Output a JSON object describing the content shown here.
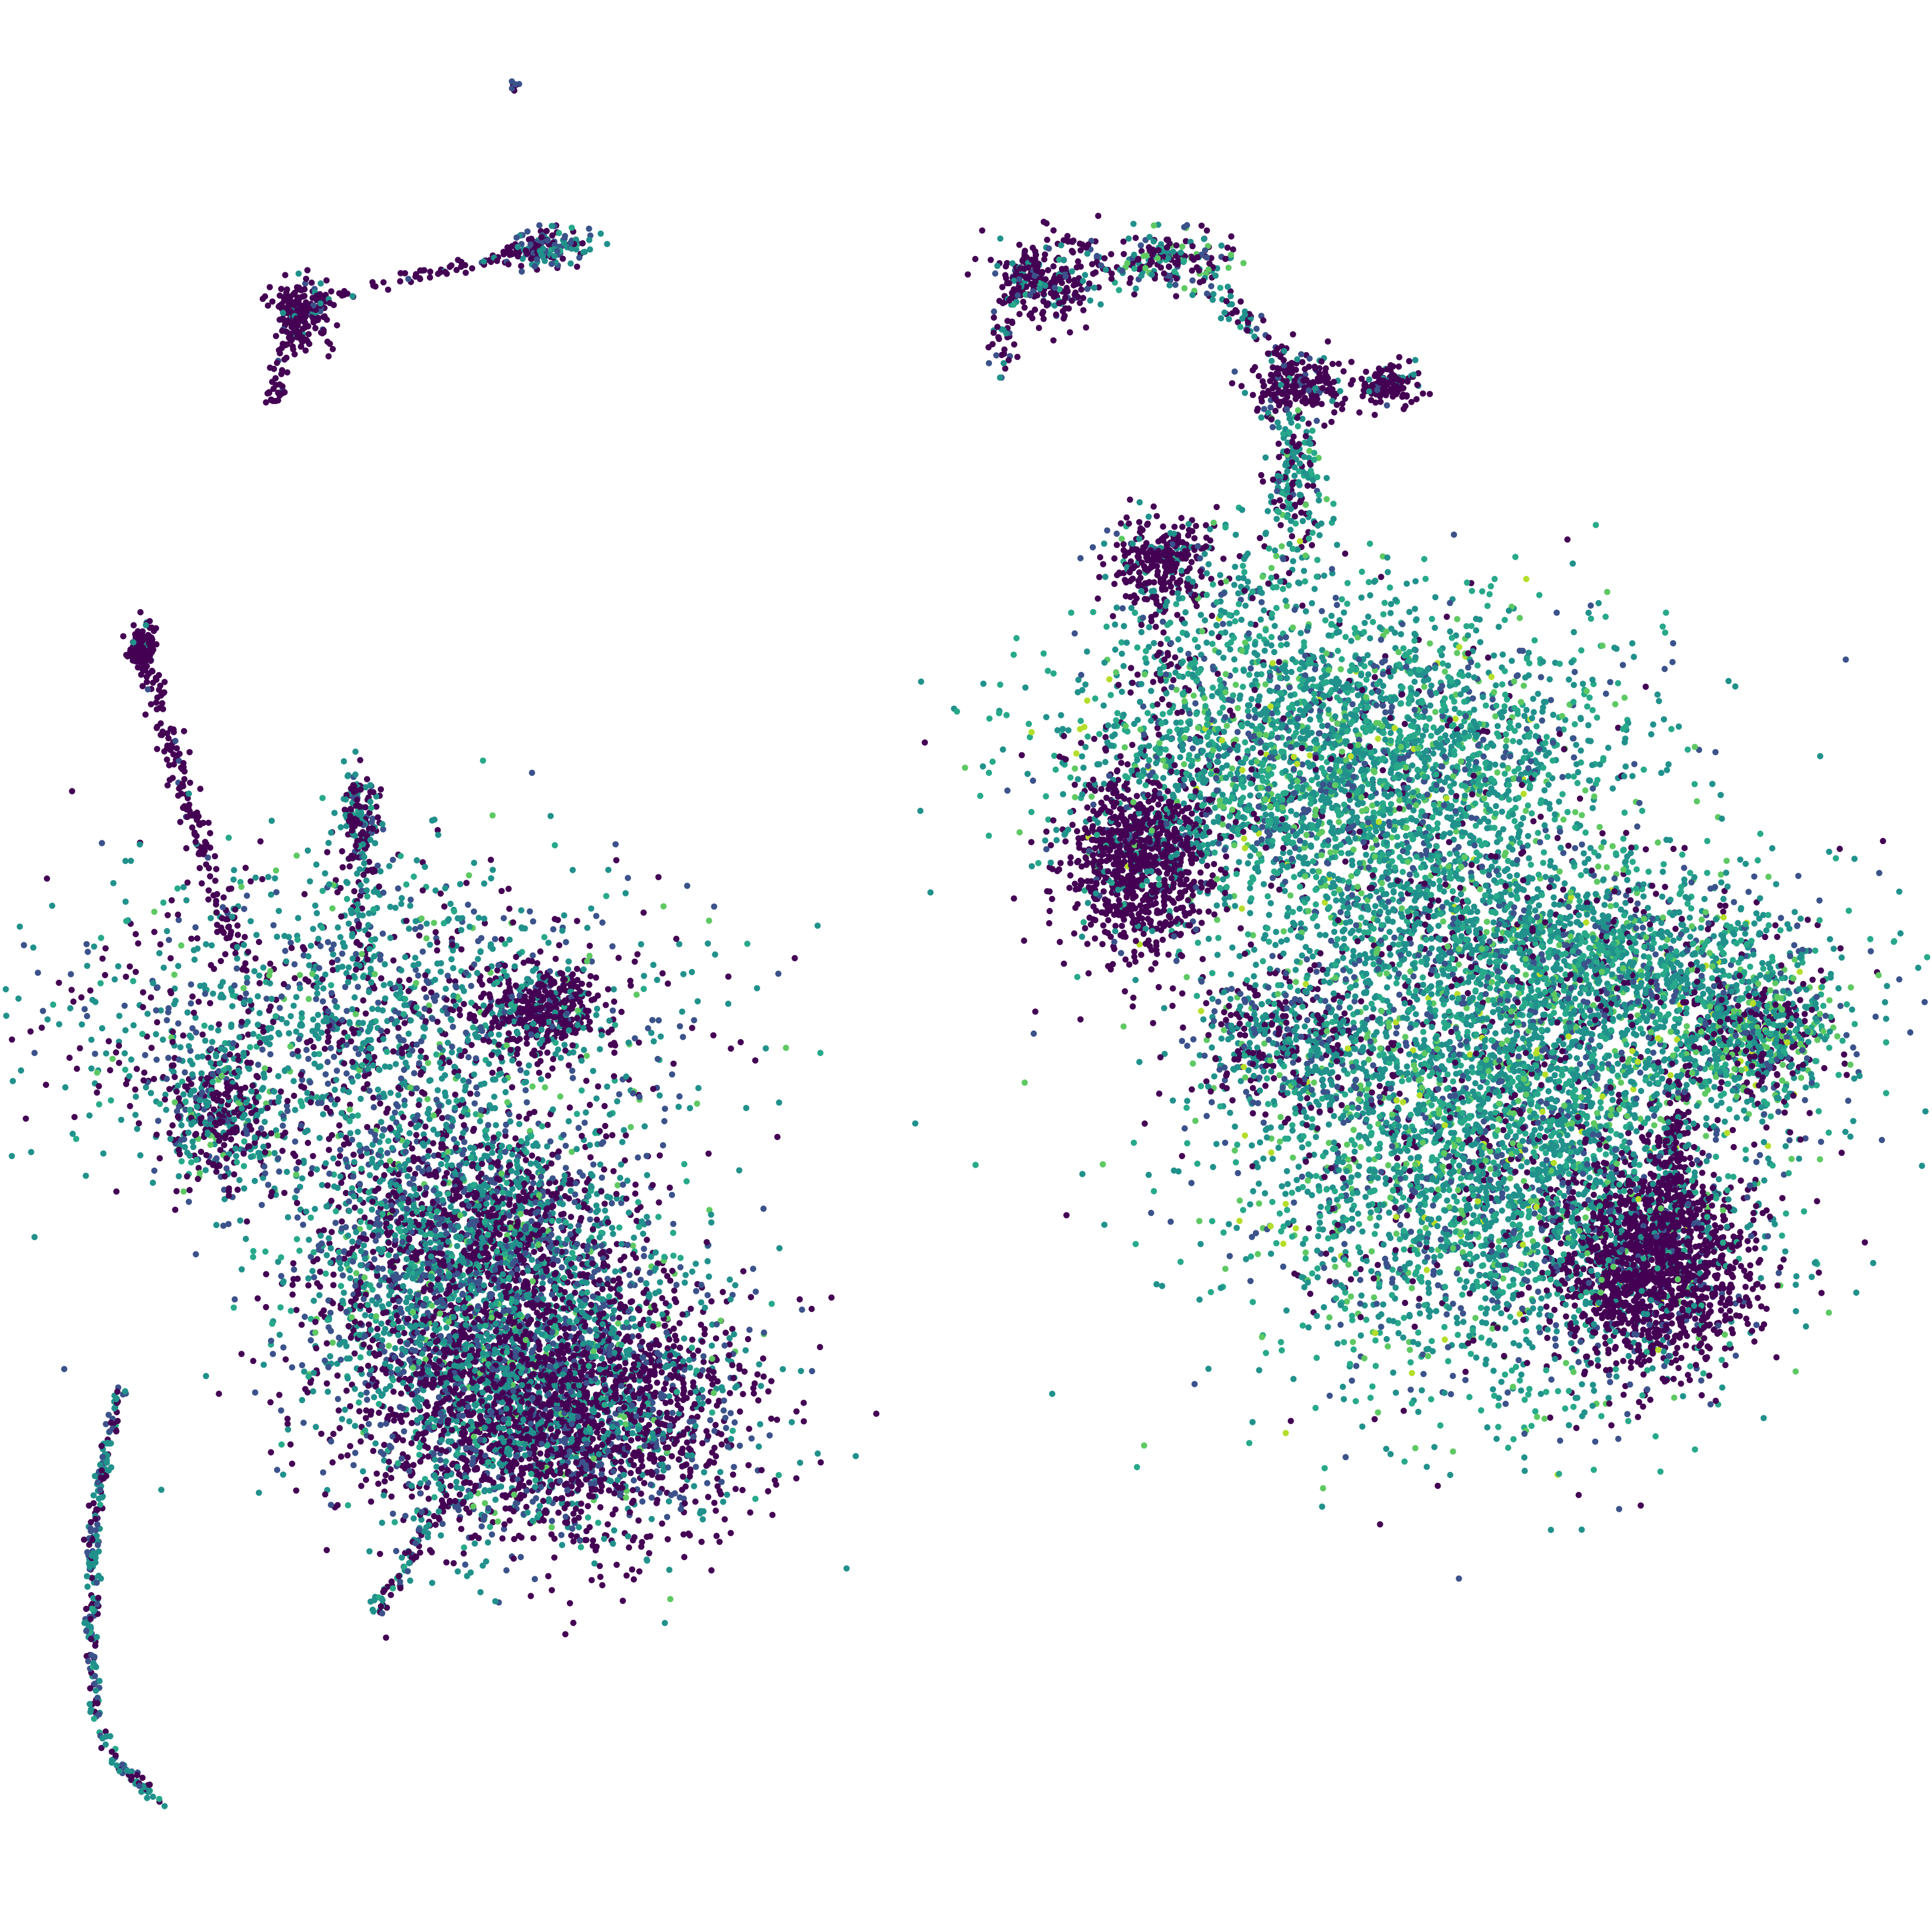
{
  "chart_data": {
    "type": "scatter",
    "title": "",
    "xlabel": "",
    "ylabel": "",
    "axes_visible": false,
    "grid": false,
    "legend": "none",
    "xlim": [
      0,
      1600
    ],
    "ylim": [
      1600,
      0
    ],
    "colormap": "viridis",
    "palette": [
      "#440154",
      "#3b528b",
      "#21918c",
      "#27a98a",
      "#5ec962",
      "#b5de2b"
    ],
    "clusters": [
      {
        "name": "c01",
        "center": [
          425,
          72
        ],
        "spread": [
          3,
          3
        ],
        "count": 8,
        "weights": [
          0.5,
          0.3,
          0.2,
          0,
          0,
          0
        ]
      },
      {
        "name": "c02",
        "center": [
          250,
          258
        ],
        "spread": [
          12,
          14
        ],
        "count": 180,
        "weights": [
          0.9,
          0.05,
          0.05,
          0,
          0,
          0
        ]
      },
      {
        "name": "c03",
        "center": [
          455,
          205
        ],
        "spread": [
          16,
          8
        ],
        "count": 140,
        "weights": [
          0.35,
          0.25,
          0.35,
          0.05,
          0,
          0
        ]
      },
      {
        "name": "c04",
        "center": [
          870,
          232
        ],
        "spread": [
          25,
          18
        ],
        "count": 260,
        "weights": [
          0.75,
          0.1,
          0.1,
          0.05,
          0,
          0
        ]
      },
      {
        "name": "c05",
        "center": [
          970,
          215
        ],
        "spread": [
          25,
          12
        ],
        "count": 180,
        "weights": [
          0.45,
          0.15,
          0.25,
          0.05,
          0.1,
          0
        ]
      },
      {
        "name": "c06",
        "center": [
          1075,
          320
        ],
        "spread": [
          22,
          14
        ],
        "count": 200,
        "weights": [
          0.8,
          0.1,
          0.1,
          0,
          0,
          0
        ]
      },
      {
        "name": "c07",
        "center": [
          1148,
          320
        ],
        "spread": [
          12,
          8
        ],
        "count": 130,
        "weights": [
          0.85,
          0.05,
          0.1,
          0,
          0,
          0
        ]
      },
      {
        "name": "c08",
        "center": [
          1075,
          410
        ],
        "spread": [
          14,
          35
        ],
        "count": 130,
        "weights": [
          0.25,
          0.05,
          0.5,
          0.15,
          0.05,
          0
        ]
      },
      {
        "name": "c09",
        "center": [
          960,
          465
        ],
        "spread": [
          22,
          18
        ],
        "count": 260,
        "weights": [
          0.85,
          0.05,
          0.1,
          0,
          0,
          0
        ]
      },
      {
        "name": "c10",
        "center": [
          1010,
          490
        ],
        "spread": [
          40,
          30
        ],
        "count": 150,
        "weights": [
          0.25,
          0.05,
          0.45,
          0.2,
          0.05,
          0
        ]
      },
      {
        "name": "c11",
        "center": [
          945,
          710
        ],
        "spread": [
          32,
          40
        ],
        "count": 900,
        "weights": [
          0.93,
          0.02,
          0.05,
          0,
          0,
          0
        ]
      },
      {
        "name": "c12",
        "center": [
          1110,
          630
        ],
        "spread": [
          110,
          65
        ],
        "count": 3200,
        "weights": [
          0.06,
          0.12,
          0.4,
          0.3,
          0.1,
          0.02
        ]
      },
      {
        "name": "c13",
        "center": [
          1200,
          760
        ],
        "spread": [
          90,
          40
        ],
        "count": 700,
        "weights": [
          0.12,
          0.15,
          0.45,
          0.2,
          0.08,
          0
        ]
      },
      {
        "name": "c14",
        "center": [
          1060,
          860
        ],
        "spread": [
          40,
          30
        ],
        "count": 450,
        "weights": [
          0.35,
          0.2,
          0.35,
          0.05,
          0.05,
          0
        ]
      },
      {
        "name": "c15",
        "center": [
          1240,
          940
        ],
        "spread": [
          105,
          100
        ],
        "count": 4200,
        "weights": [
          0.1,
          0.13,
          0.4,
          0.25,
          0.1,
          0.02
        ]
      },
      {
        "name": "c16",
        "center": [
          1350,
          805
        ],
        "spread": [
          85,
          40
        ],
        "count": 1100,
        "weights": [
          0.1,
          0.15,
          0.45,
          0.2,
          0.08,
          0.02
        ]
      },
      {
        "name": "c17",
        "center": [
          1455,
          860
        ],
        "spread": [
          32,
          28
        ],
        "count": 600,
        "weights": [
          0.25,
          0.1,
          0.3,
          0.15,
          0.15,
          0.05
        ]
      },
      {
        "name": "c18",
        "center": [
          1368,
          1050
        ],
        "spread": [
          40,
          40
        ],
        "count": 1600,
        "weights": [
          0.93,
          0.03,
          0.04,
          0,
          0,
          0
        ]
      },
      {
        "name": "c19",
        "center": [
          1385,
          960
        ],
        "spread": [
          10,
          35
        ],
        "count": 150,
        "weights": [
          0.85,
          0.05,
          0.1,
          0,
          0,
          0
        ]
      },
      {
        "name": "c20",
        "center": [
          118,
          535
        ],
        "spread": [
          6,
          10
        ],
        "count": 100,
        "weights": [
          0.95,
          0,
          0.05,
          0,
          0,
          0
        ]
      },
      {
        "name": "c21",
        "center": [
          297,
          680
        ],
        "spread": [
          8,
          20
        ],
        "count": 160,
        "weights": [
          0.55,
          0.1,
          0.3,
          0.05,
          0,
          0
        ]
      },
      {
        "name": "c22",
        "center": [
          310,
          855
        ],
        "spread": [
          130,
          70
        ],
        "count": 1700,
        "weights": [
          0.3,
          0.15,
          0.4,
          0.1,
          0.05,
          0
        ]
      },
      {
        "name": "c23",
        "center": [
          450,
          835
        ],
        "spread": [
          25,
          18
        ],
        "count": 350,
        "weights": [
          0.85,
          0.05,
          0.1,
          0,
          0,
          0
        ]
      },
      {
        "name": "c24",
        "center": [
          180,
          920
        ],
        "spread": [
          25,
          30
        ],
        "count": 350,
        "weights": [
          0.45,
          0.1,
          0.35,
          0.05,
          0.05,
          0
        ]
      },
      {
        "name": "c25",
        "center": [
          400,
          1080
        ],
        "spread": [
          80,
          70
        ],
        "count": 2600,
        "weights": [
          0.35,
          0.2,
          0.3,
          0.1,
          0.05,
          0
        ]
      },
      {
        "name": "c26",
        "center": [
          460,
          1170
        ],
        "spread": [
          75,
          55
        ],
        "count": 2700,
        "weights": [
          0.6,
          0.15,
          0.18,
          0.05,
          0.02,
          0
        ]
      },
      {
        "name": "c27",
        "center": [
          385,
          1000
        ],
        "spread": [
          55,
          40
        ],
        "count": 700,
        "weights": [
          0.4,
          0.2,
          0.3,
          0.08,
          0.02,
          0
        ]
      }
    ],
    "strands": [
      {
        "name": "s01",
        "points": [
          [
            225,
            340
          ],
          [
            232,
            300
          ],
          [
            255,
            255
          ]
        ],
        "count": 70,
        "jitter": 4,
        "weights": [
          0.85,
          0.05,
          0.1,
          0,
          0,
          0
        ]
      },
      {
        "name": "s02",
        "points": [
          [
            260,
            250
          ],
          [
            330,
            232
          ],
          [
            410,
            215
          ],
          [
            460,
            198
          ]
        ],
        "count": 90,
        "jitter": 3,
        "weights": [
          0.85,
          0.05,
          0.1,
          0,
          0,
          0
        ]
      },
      {
        "name": "s03",
        "points": [
          [
            995,
            225
          ],
          [
            1030,
            265
          ],
          [
            1065,
            300
          ]
        ],
        "count": 60,
        "jitter": 6,
        "weights": [
          0.5,
          0.1,
          0.35,
          0.05,
          0,
          0
        ]
      },
      {
        "name": "s04",
        "points": [
          [
            850,
            215
          ],
          [
            835,
            260
          ],
          [
            830,
            305
          ]
        ],
        "count": 60,
        "jitter": 6,
        "weights": [
          0.7,
          0.1,
          0.15,
          0.05,
          0,
          0
        ]
      },
      {
        "name": "s05",
        "points": [
          [
            1060,
            345
          ],
          [
            1070,
            380
          ],
          [
            1060,
            430
          ]
        ],
        "count": 60,
        "jitter": 8,
        "weights": [
          0.3,
          0.05,
          0.5,
          0.15,
          0,
          0
        ]
      },
      {
        "name": "s06",
        "points": [
          [
            115,
            540
          ],
          [
            135,
            590
          ],
          [
            155,
            660
          ],
          [
            175,
            730
          ],
          [
            200,
            790
          ]
        ],
        "count": 180,
        "jitter": 5,
        "weights": [
          0.92,
          0.03,
          0.05,
          0,
          0,
          0
        ]
      },
      {
        "name": "s07",
        "points": [
          [
            100,
            1150
          ],
          [
            88,
            1200
          ],
          [
            76,
            1270
          ],
          [
            76,
            1350
          ],
          [
            80,
            1420
          ],
          [
            95,
            1460
          ],
          [
            135,
            1492
          ]
        ],
        "count": 260,
        "jitter": 3,
        "weights": [
          0.35,
          0.2,
          0.4,
          0.05,
          0,
          0
        ]
      },
      {
        "name": "s08",
        "points": [
          [
            310,
            1335
          ],
          [
            335,
            1300
          ],
          [
            355,
            1260
          ],
          [
            380,
            1240
          ]
        ],
        "count": 90,
        "jitter": 4,
        "weights": [
          0.5,
          0.15,
          0.3,
          0.05,
          0,
          0
        ]
      },
      {
        "name": "s09",
        "points": [
          [
            300,
            720
          ],
          [
            300,
            770
          ],
          [
            298,
            810
          ]
        ],
        "count": 60,
        "jitter": 10,
        "weights": [
          0.4,
          0.1,
          0.45,
          0.05,
          0,
          0
        ]
      },
      {
        "name": "s10",
        "points": [
          [
            960,
            500
          ],
          [
            955,
            545
          ],
          [
            975,
            580
          ]
        ],
        "count": 50,
        "jitter": 12,
        "weights": [
          0.7,
          0.05,
          0.2,
          0.05,
          0,
          0
        ]
      }
    ]
  }
}
